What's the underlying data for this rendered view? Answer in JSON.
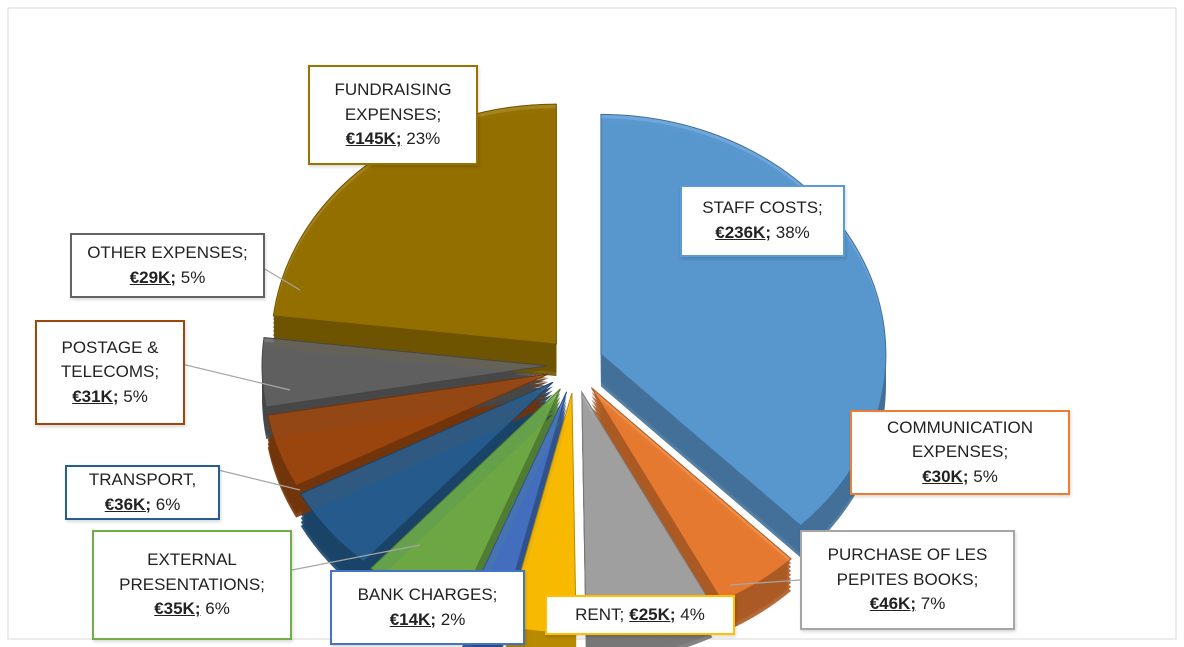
{
  "chart_data": {
    "type": "pie",
    "categories": [
      "STAFF COSTS;",
      "COMMUNICATION EXPENSES;",
      "PURCHASE OF LES PEPITES BOOKS;",
      "RENT;",
      "BANK CHARGES;",
      "EXTERNAL PRESENTATIONS;",
      "TRANSPORT,",
      "POSTAGE & TELECOMS;",
      "OTHER EXPENSES;",
      "FUNDRAISING EXPENSES;"
    ],
    "values": [
      236000,
      30000,
      46000,
      25000,
      14000,
      35000,
      36000,
      31000,
      29000,
      145000
    ],
    "value_labels": [
      "€236K;",
      "€30K;",
      "€46K;",
      "€25K;",
      "€14K;",
      "€35K;",
      "€36K;",
      "€31K;",
      "€29K;",
      "€145K;"
    ],
    "percents": [
      38,
      5,
      7,
      4,
      2,
      6,
      6,
      5,
      5,
      23
    ],
    "percent_labels": [
      "38%",
      "5%",
      "7%",
      "4%",
      "2%",
      "6%",
      "6%",
      "5%",
      "5%",
      "23%"
    ],
    "colors": [
      "#5b9bd5",
      "#ed7d31",
      "#a5a5a5",
      "#ffc000",
      "#4472c4",
      "#70ad47",
      "#255e91",
      "#9e480e",
      "#636363",
      "#997300"
    ]
  }
}
